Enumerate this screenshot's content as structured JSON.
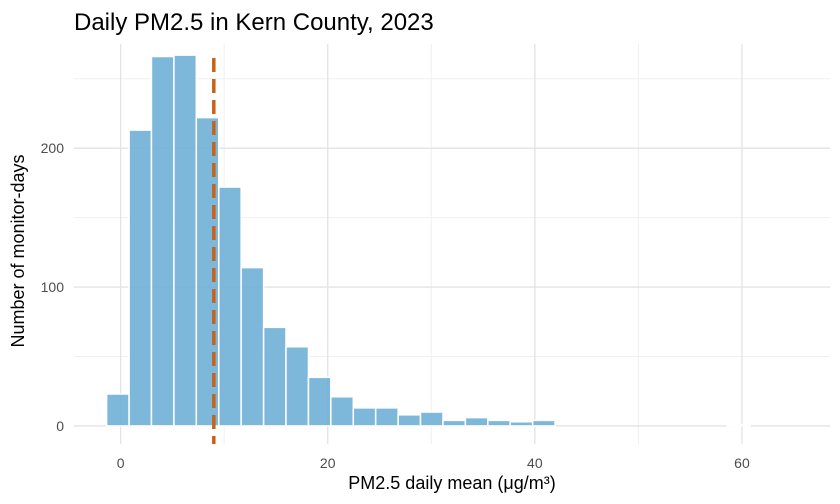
{
  "chart_data": {
    "type": "histogram",
    "title": "Daily PM2.5 in Kern County, 2023",
    "xlabel": "PM2.5 daily mean (μg/m³)",
    "ylabel": "Number of monitor-days",
    "xlim": [
      -4.5,
      68.5
    ],
    "ylim": [
      -13,
      275
    ],
    "x_ticks": [
      0,
      20,
      40,
      60
    ],
    "x_tick_labels": [
      "0",
      "20",
      "40",
      "60"
    ],
    "y_ticks": [
      0,
      100,
      200
    ],
    "y_tick_labels": [
      "0",
      "100",
      "200"
    ],
    "x_minor": [
      10,
      30,
      50
    ],
    "y_minor": [
      50,
      150,
      250
    ],
    "bin_width": 2.165,
    "bins": [
      {
        "x0": -1.35,
        "x1": 0.82,
        "count": 23
      },
      {
        "x0": 0.82,
        "x1": 2.98,
        "count": 213
      },
      {
        "x0": 2.98,
        "x1": 5.15,
        "count": 266
      },
      {
        "x0": 5.15,
        "x1": 7.31,
        "count": 267
      },
      {
        "x0": 7.31,
        "x1": 9.48,
        "count": 222
      },
      {
        "x0": 9.48,
        "x1": 11.64,
        "count": 172
      },
      {
        "x0": 11.64,
        "x1": 13.81,
        "count": 114
      },
      {
        "x0": 13.81,
        "x1": 15.97,
        "count": 71
      },
      {
        "x0": 15.97,
        "x1": 18.14,
        "count": 57
      },
      {
        "x0": 18.14,
        "x1": 20.3,
        "count": 35
      },
      {
        "x0": 20.3,
        "x1": 22.47,
        "count": 21
      },
      {
        "x0": 22.47,
        "x1": 24.63,
        "count": 13
      },
      {
        "x0": 24.63,
        "x1": 26.8,
        "count": 13
      },
      {
        "x0": 26.8,
        "x1": 28.96,
        "count": 8
      },
      {
        "x0": 28.96,
        "x1": 31.13,
        "count": 10
      },
      {
        "x0": 31.13,
        "x1": 33.29,
        "count": 4
      },
      {
        "x0": 33.29,
        "x1": 35.46,
        "count": 6
      },
      {
        "x0": 35.46,
        "x1": 37.62,
        "count": 4
      },
      {
        "x0": 37.62,
        "x1": 39.79,
        "count": 3
      },
      {
        "x0": 39.79,
        "x1": 41.95,
        "count": 4
      },
      {
        "x0": 58.6,
        "x1": 60.8,
        "count": 1
      }
    ],
    "reference_line": {
      "x": 9.0,
      "color": "#c8621a",
      "style": "dashed"
    },
    "bar_color": "#6baed6",
    "grid": true,
    "legend": "none"
  }
}
